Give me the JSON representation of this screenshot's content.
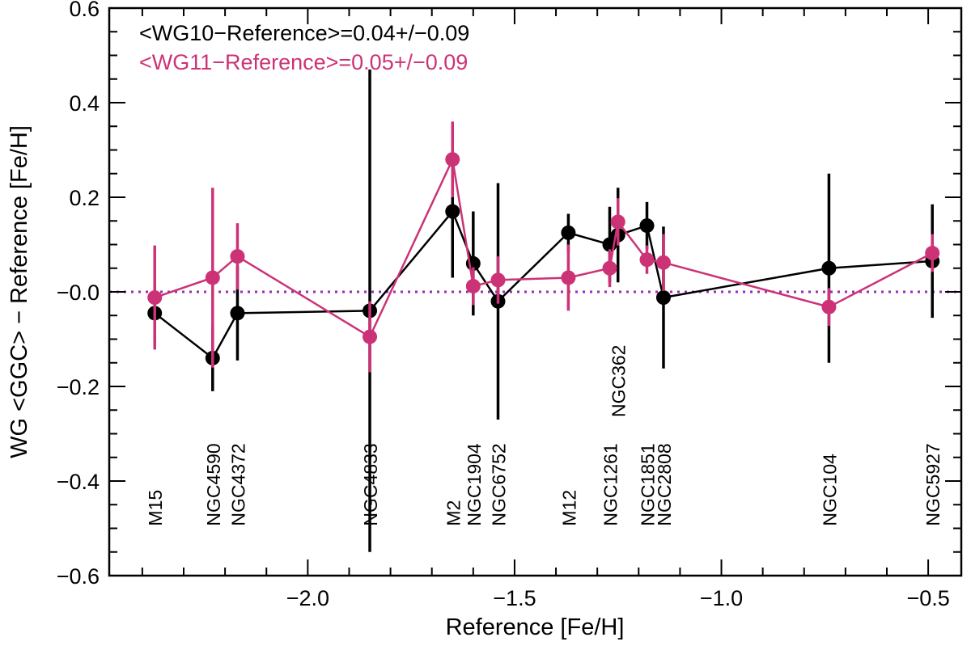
{
  "chart_data": {
    "type": "scatter",
    "title": "",
    "xlabel": "Reference [Fe/H]",
    "ylabel": "WG <GGC> − Reference [Fe/H]",
    "xlim": [
      -2.48,
      -0.42
    ],
    "ylim": [
      -0.6,
      0.6
    ],
    "xticks": [
      -2.0,
      -1.5,
      -1.0,
      -0.5
    ],
    "xtick_labels": [
      "−2.0",
      "−1.5",
      "−1.0",
      "−0.5"
    ],
    "yticks": [
      -0.6,
      -0.4,
      -0.2,
      0.0,
      0.2,
      0.4,
      0.6
    ],
    "ytick_labels": [
      "−0.6",
      "−0.4",
      "−0.2",
      "−0.0",
      "0.2",
      "0.4",
      "0.6"
    ],
    "reference_line": {
      "y": 0.0,
      "style": "dotted",
      "color": "#9a2fb3"
    },
    "annotations": [
      {
        "text": "<WG10−Reference>=0.04+/−0.09",
        "color": "#000000"
      },
      {
        "text": "<WG11−Reference>=0.05+/−0.09",
        "color": "#cc3377"
      }
    ],
    "cluster_labels": [
      {
        "name": "M15",
        "x": -2.37
      },
      {
        "name": "NGC4590",
        "x": -2.23
      },
      {
        "name": "NGC4372",
        "x": -2.17
      },
      {
        "name": "NGC4833",
        "x": -1.85
      },
      {
        "name": "M2",
        "x": -1.65
      },
      {
        "name": "NGC1904",
        "x": -1.6
      },
      {
        "name": "NGC6752",
        "x": -1.54
      },
      {
        "name": "M12",
        "x": -1.37
      },
      {
        "name": "NGC1261",
        "x": -1.27
      },
      {
        "name": "NGC362",
        "x": -1.25,
        "raised": true
      },
      {
        "name": "NGC1851",
        "x": -1.18
      },
      {
        "name": "NGC2808",
        "x": -1.14
      },
      {
        "name": "NGC104",
        "x": -0.74
      },
      {
        "name": "NGC5927",
        "x": -0.49
      }
    ],
    "series": [
      {
        "name": "WG10",
        "color": "#000000",
        "points": [
          {
            "x": -2.37,
            "y": -0.045,
            "err": 0.06
          },
          {
            "x": -2.23,
            "y": -0.14,
            "err": 0.07
          },
          {
            "x": -2.17,
            "y": -0.045,
            "err": 0.1
          },
          {
            "x": -1.85,
            "y": -0.04,
            "err": 0.51
          },
          {
            "x": -1.65,
            "y": 0.17,
            "err": 0.14
          },
          {
            "x": -1.6,
            "y": 0.06,
            "err": 0.11
          },
          {
            "x": -1.54,
            "y": -0.02,
            "err": 0.25
          },
          {
            "x": -1.37,
            "y": 0.125,
            "err": 0.04
          },
          {
            "x": -1.27,
            "y": 0.1,
            "err": 0.08
          },
          {
            "x": -1.25,
            "y": 0.12,
            "err": 0.1
          },
          {
            "x": -1.18,
            "y": 0.14,
            "err": 0.05
          },
          {
            "x": -1.14,
            "y": -0.012,
            "err": 0.15
          },
          {
            "x": -0.74,
            "y": 0.05,
            "err": 0.2
          },
          {
            "x": -0.49,
            "y": 0.065,
            "err": 0.12
          }
        ]
      },
      {
        "name": "WG11",
        "color": "#cc3377",
        "points": [
          {
            "x": -2.37,
            "y": -0.012,
            "err": 0.11
          },
          {
            "x": -2.23,
            "y": 0.03,
            "err": 0.19
          },
          {
            "x": -2.17,
            "y": 0.075,
            "err": 0.07
          },
          {
            "x": -1.85,
            "y": -0.095,
            "err": 0.075
          },
          {
            "x": -1.65,
            "y": 0.28,
            "err": 0.08
          },
          {
            "x": -1.6,
            "y": 0.012,
            "err": 0.04
          },
          {
            "x": -1.54,
            "y": 0.025,
            "err": 0.05
          },
          {
            "x": -1.37,
            "y": 0.03,
            "err": 0.07
          },
          {
            "x": -1.27,
            "y": 0.05,
            "err": 0.04
          },
          {
            "x": -1.25,
            "y": 0.148,
            "err": 0.05
          },
          {
            "x": -1.18,
            "y": 0.068,
            "err": 0.03
          },
          {
            "x": -1.14,
            "y": 0.062,
            "err": 0.06
          },
          {
            "x": -0.74,
            "y": -0.032,
            "err": 0.04
          },
          {
            "x": -0.49,
            "y": 0.082,
            "err": 0.04
          }
        ]
      }
    ]
  }
}
